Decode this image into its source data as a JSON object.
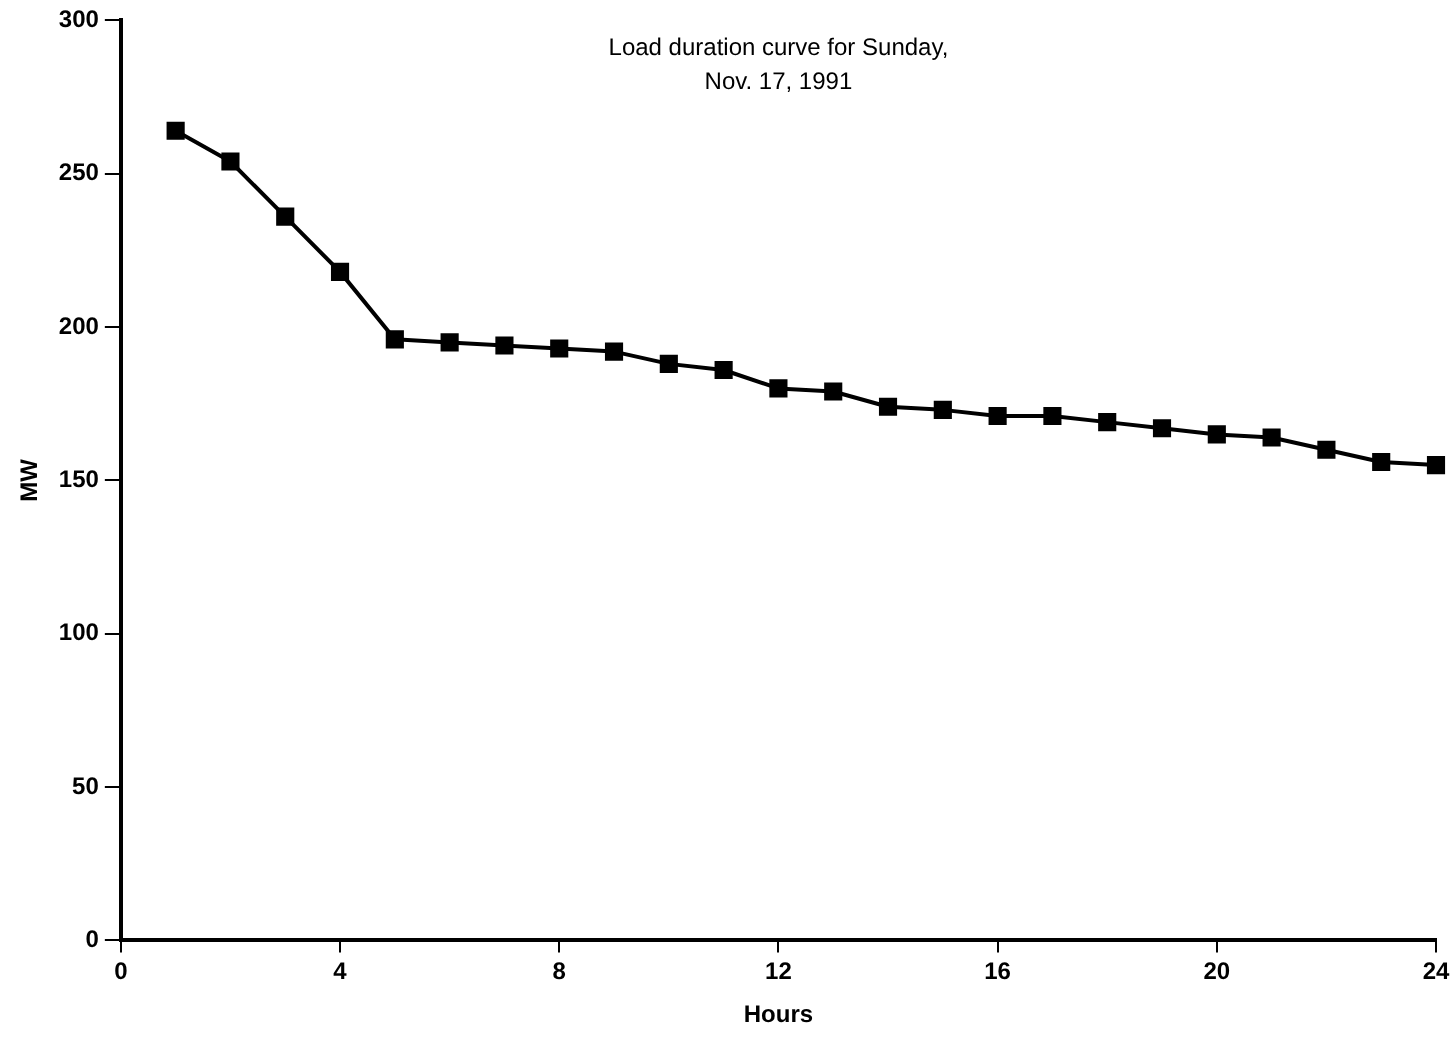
{
  "chart_data": {
    "type": "line",
    "title": "Load duration curve for Sunday,\nNov. 17, 1991",
    "xlabel": "Hours",
    "ylabel": "MW",
    "x": [
      1,
      2,
      3,
      4,
      5,
      6,
      7,
      8,
      9,
      10,
      11,
      12,
      13,
      14,
      15,
      16,
      17,
      18,
      19,
      20,
      21,
      22,
      23,
      24
    ],
    "series": [
      {
        "color": "#000000",
        "values": [
          264,
          254,
          236,
          218,
          196,
          195,
          194,
          193,
          192,
          188,
          186,
          180,
          179,
          174,
          173,
          171,
          171,
          169,
          167,
          165,
          164,
          160,
          156,
          155
        ]
      }
    ],
    "xlim": [
      0,
      24
    ],
    "xticks": [
      0,
      4,
      8,
      12,
      16,
      20,
      24
    ],
    "ylim": [
      0,
      300
    ],
    "yticks": [
      0,
      50,
      100,
      150,
      200,
      250,
      300
    ],
    "grid": false,
    "legend": false,
    "marker": "square",
    "line_style": "solid"
  }
}
